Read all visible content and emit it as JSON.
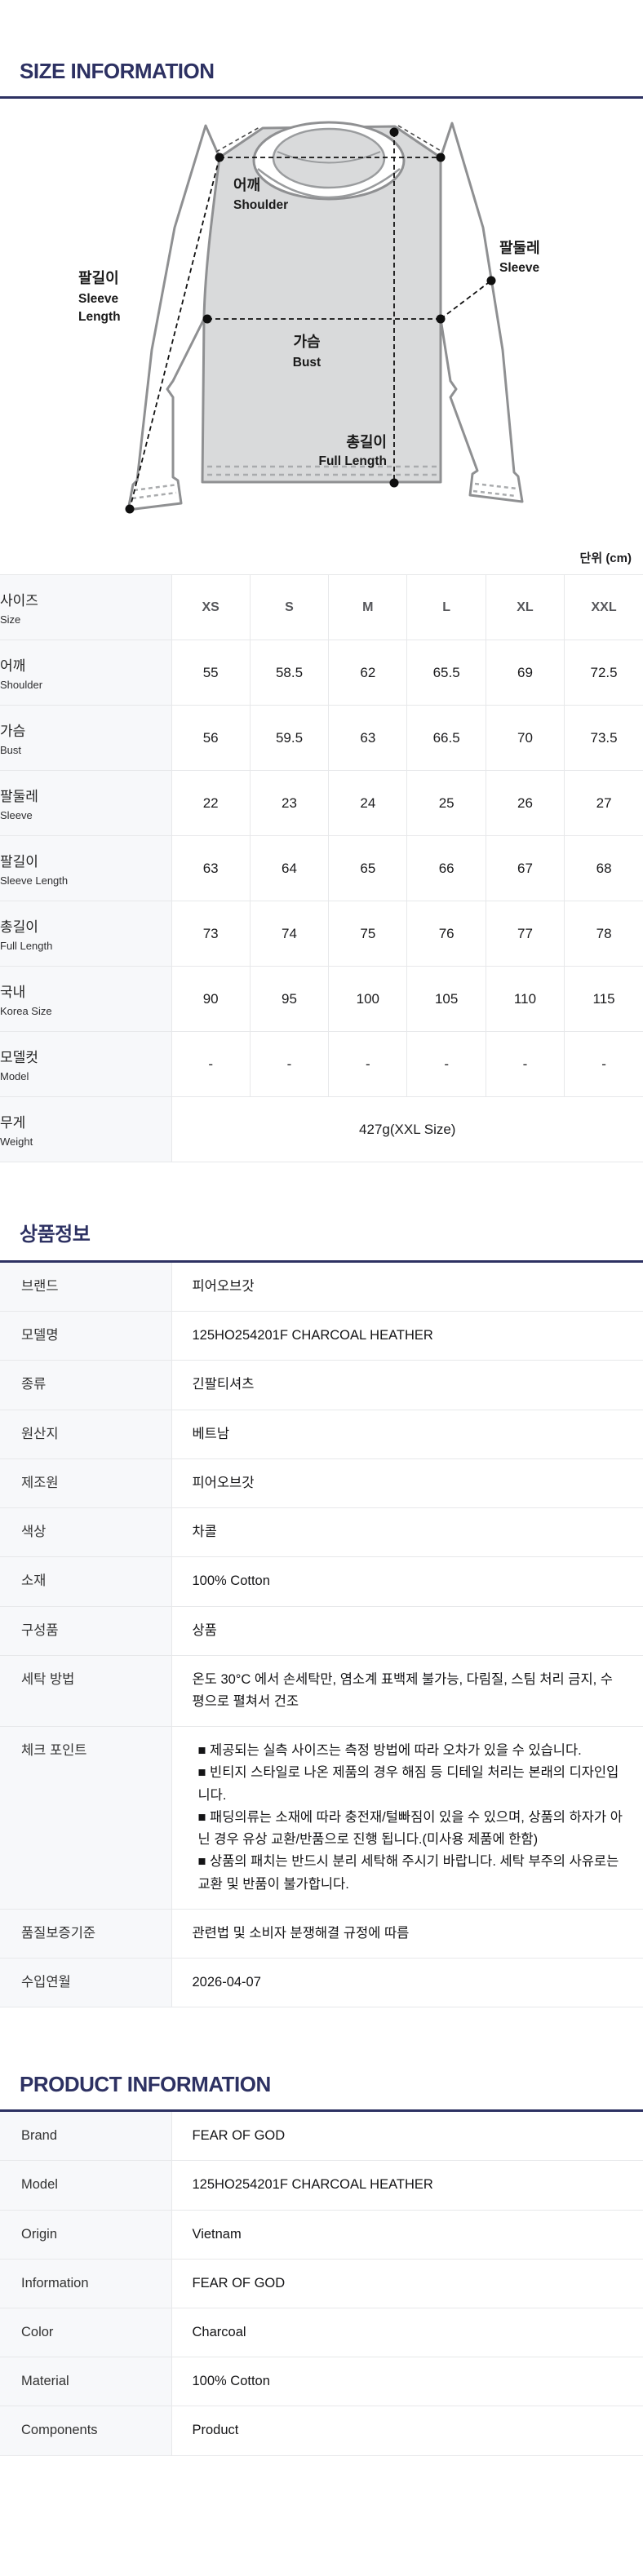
{
  "colors": {
    "accent_navy": "#2d3162",
    "table_border": "#e7e8ea",
    "label_column_bg": "#f7f8fa",
    "size_header_text": "#56575b",
    "diagram_body_fill": "#d9dadb",
    "diagram_stroke": "#8f9092"
  },
  "size_section": {
    "title": "SIZE INFORMATION",
    "unit_label": "단위 (cm)"
  },
  "diagram": {
    "shoulder_ko": "어깨",
    "shoulder_en": "Shoulder",
    "sleeve_ko": "팔둘레",
    "sleeve_en": "Sleeve",
    "sleeve_length_ko": "팔길이",
    "sleeve_length_en1": "Sleeve",
    "sleeve_length_en2": "Length",
    "bust_ko": "가슴",
    "bust_en": "Bust",
    "full_length_ko": "총길이",
    "full_length_en": "Full Length"
  },
  "size_table": {
    "corner_ko": "사이즈",
    "corner_en": "Size",
    "columns": [
      "XS",
      "S",
      "M",
      "L",
      "XL",
      "XXL"
    ],
    "rows": [
      {
        "ko": "어깨",
        "en": "Shoulder",
        "values": [
          "55",
          "58.5",
          "62",
          "65.5",
          "69",
          "72.5"
        ]
      },
      {
        "ko": "가슴",
        "en": "Bust",
        "values": [
          "56",
          "59.5",
          "63",
          "66.5",
          "70",
          "73.5"
        ]
      },
      {
        "ko": "팔둘레",
        "en": "Sleeve",
        "values": [
          "22",
          "23",
          "24",
          "25",
          "26",
          "27"
        ]
      },
      {
        "ko": "팔길이",
        "en": "Sleeve Length",
        "values": [
          "63",
          "64",
          "65",
          "66",
          "67",
          "68"
        ]
      },
      {
        "ko": "총길이",
        "en": "Full Length",
        "values": [
          "73",
          "74",
          "75",
          "76",
          "77",
          "78"
        ]
      },
      {
        "ko": "국내",
        "en": "Korea Size",
        "values": [
          "90",
          "95",
          "100",
          "105",
          "110",
          "115"
        ]
      },
      {
        "ko": "모델컷",
        "en": "Model",
        "values": [
          "-",
          "-",
          "-",
          "-",
          "-",
          "-"
        ]
      }
    ],
    "weight_row": {
      "ko": "무게",
      "en": "Weight",
      "value": "427g(XXL Size)"
    }
  },
  "info_section": {
    "title": "상품정보",
    "rows": [
      {
        "label": "브랜드",
        "value": "피어오브갓"
      },
      {
        "label": "모델명",
        "value": "125HO254201F CHARCOAL HEATHER"
      },
      {
        "label": "종류",
        "value": "긴팔티셔츠"
      },
      {
        "label": "원산지",
        "value": "베트남"
      },
      {
        "label": "제조원",
        "value": "피어오브갓"
      },
      {
        "label": "색상",
        "value": "차콜"
      },
      {
        "label": "소재",
        "value": "100% Cotton"
      },
      {
        "label": "구성품",
        "value": "상품"
      },
      {
        "label": "세탁 방법",
        "value": "온도 30°C 에서 손세탁만, 염소계 표백제 불가능, 다림질, 스팀 처리 금지, 수평으로 펼쳐서 건조"
      },
      {
        "label": "체크 포인트",
        "value_lines": [
          "■ 제공되는 실측 사이즈는 측정 방법에 따라 오차가 있을 수 있습니다.",
          "■ 빈티지 스타일로 나온 제품의 경우 해짐 등 디테일 처리는 본래의 디자인입니다.",
          "■ 패딩의류는 소재에 따라 충전재/털빠짐이 있을 수 있으며, 상품의 하자가 아닌 경우 유상 교환/반품으로 진행 됩니다.(미사용 제품에 한함)",
          "■ 상품의 패치는 반드시 분리 세탁해 주시기 바랍니다. 세탁 부주의 사유로는 교환 및 반품이 불가합니다."
        ]
      },
      {
        "label": "품질보증기준",
        "value": "관련법 및 소비자 분쟁해결 규정에 따름"
      },
      {
        "label": "수입연월",
        "value": "2026-04-07"
      }
    ]
  },
  "product_section": {
    "title": "PRODUCT INFORMATION",
    "rows": [
      {
        "label": "Brand",
        "value": "FEAR OF GOD"
      },
      {
        "label": "Model",
        "value": "125HO254201F CHARCOAL HEATHER"
      },
      {
        "label": "Origin",
        "value": "Vietnam"
      },
      {
        "label": "Information",
        "value": "FEAR OF GOD"
      },
      {
        "label": "Color",
        "value": "Charcoal"
      },
      {
        "label": "Material",
        "value": "100% Cotton"
      },
      {
        "label": "Components",
        "value": "Product"
      }
    ]
  }
}
